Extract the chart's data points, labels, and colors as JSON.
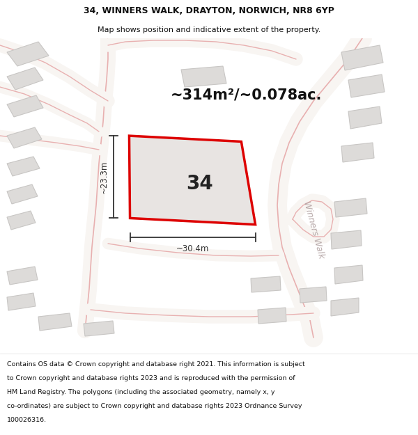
{
  "title_line1": "34, WINNERS WALK, DRAYTON, NORWICH, NR8 6YP",
  "title_line2": "Map shows position and indicative extent of the property.",
  "area_text": "~314m²/~0.078ac.",
  "plot_number": "34",
  "dim_width": "~30.4m",
  "dim_height": "~23.3m",
  "street_label": "Winners Walk",
  "footer_lines": [
    "Contains OS data © Crown copyright and database right 2021. This information is subject",
    "to Crown copyright and database rights 2023 and is reproduced with the permission of",
    "HM Land Registry. The polygons (including the associated geometry, namely x, y",
    "co-ordinates) are subject to Crown copyright and database rights 2023 Ordnance Survey",
    "100026316."
  ],
  "map_bg": "#f0efed",
  "plot_fill": "#e8e4e2",
  "plot_edge": "#dd0000",
  "neighbor_fill": "#dddbd9",
  "neighbor_edge": "#c8c6c4",
  "road_fill": "#f8f5f2",
  "road_edge": "#e8b8b8",
  "dim_color": "#333333",
  "title_color": "#111111",
  "footer_color": "#111111",
  "bg_white": "#ffffff",
  "street_text_color": "#b0a0a0",
  "area_color": "#111111"
}
